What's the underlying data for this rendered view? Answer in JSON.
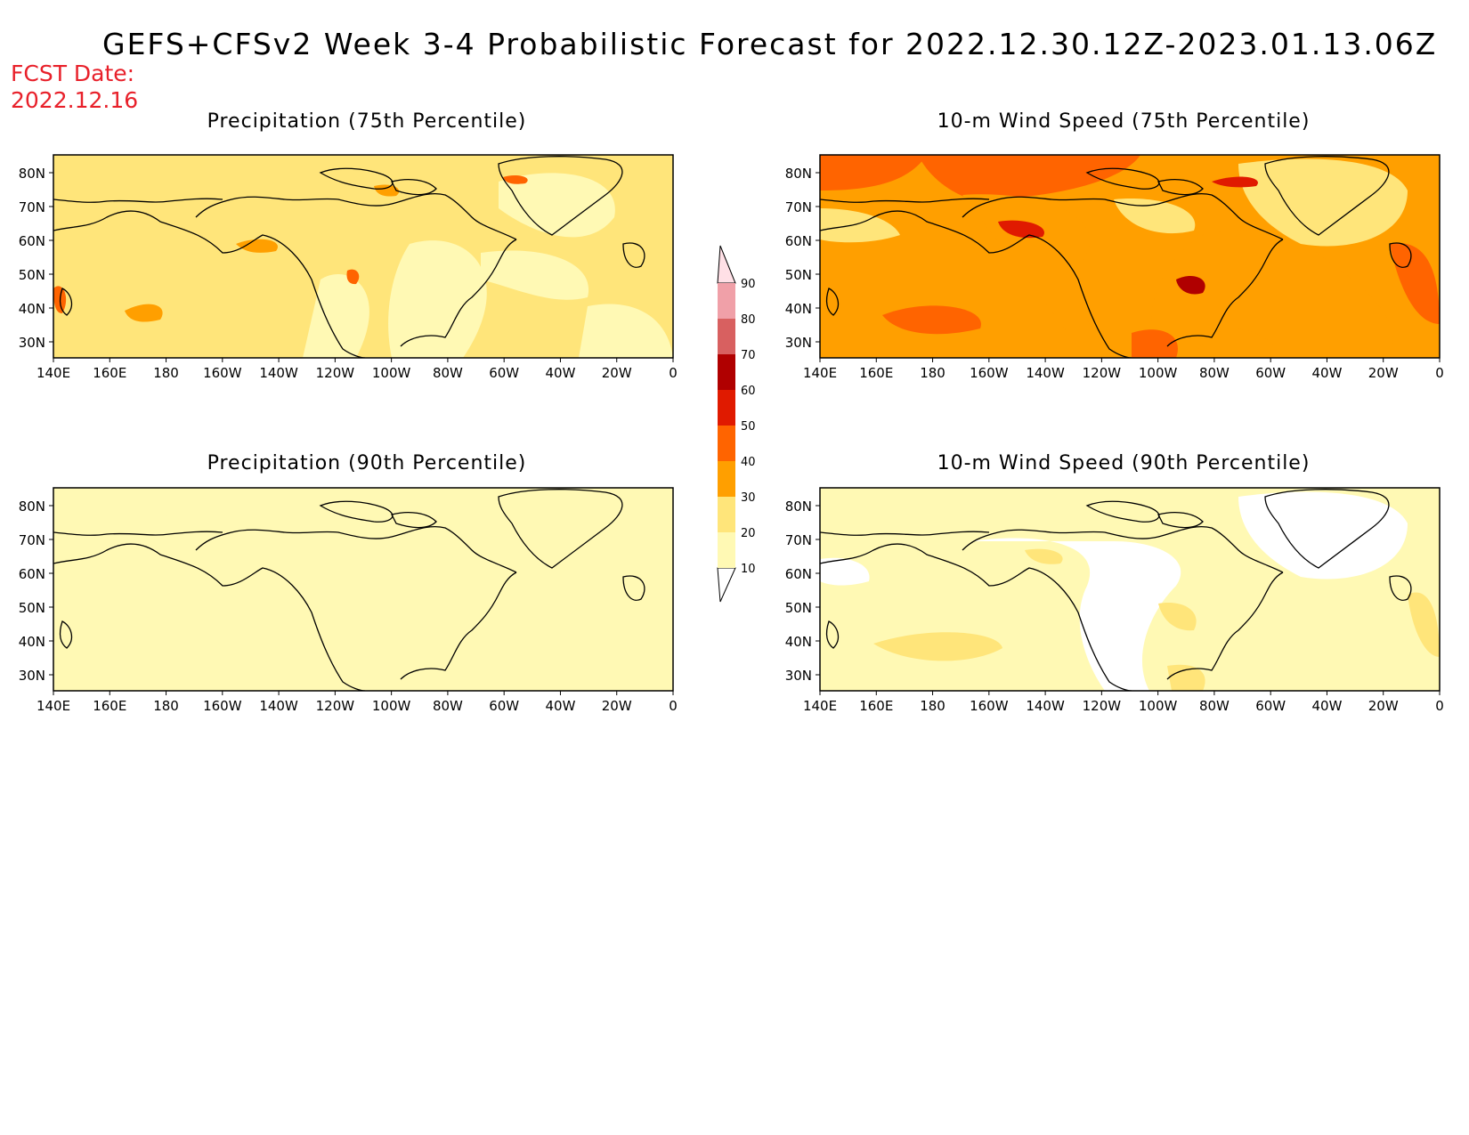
{
  "title": "GEFS+CFSv2 Week 3-4 Probabilistic Forecast for 2022.12.30.12Z-2023.01.13.06Z",
  "fcst_label": "FCST Date:",
  "fcst_date": "2022.12.16",
  "colors": {
    "white": "#ffffff",
    "c10": "#fff9b4",
    "c20": "#ffe57a",
    "c30": "#ff9f00",
    "c40": "#ff6400",
    "c50": "#e01a00",
    "c60": "#b00000",
    "c70": "#d86060",
    "c80": "#f0a0a8",
    "c90": "#ffe0e6",
    "coast": "#000000",
    "title_red": "#e8202a"
  },
  "panels": [
    {
      "id": "precip-75",
      "title": "Precipitation (75th Percentile)",
      "base_level": 20
    },
    {
      "id": "wind-75",
      "title": "10-m Wind Speed (75th Percentile)",
      "base_level": 30
    },
    {
      "id": "precip-90",
      "title": "Precipitation (90th Percentile)",
      "base_level": 10
    },
    {
      "id": "wind-90",
      "title": "10-m Wind Speed (90th Percentile)",
      "base_level": 10
    }
  ],
  "axes": {
    "lon_labels": [
      "140E",
      "160E",
      "180",
      "160W",
      "140W",
      "120W",
      "100W",
      "80W",
      "60W",
      "40W",
      "20W",
      "0"
    ],
    "lat_labels": [
      "80N",
      "70N",
      "60N",
      "50N",
      "40N",
      "30N"
    ]
  },
  "colorbar": {
    "levels": [
      "10",
      "20",
      "30",
      "40",
      "50",
      "60",
      "70",
      "80",
      "90"
    ]
  }
}
